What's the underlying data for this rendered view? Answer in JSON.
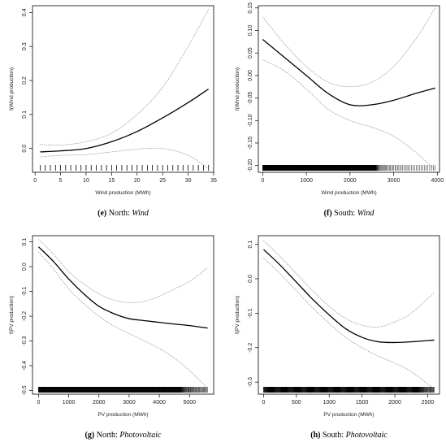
{
  "chart_data": [
    {
      "type": "line",
      "caption_label": "(e)",
      "caption_text": " North: ",
      "caption_italic": "Wind",
      "xlabel": "Wind production (MWh)",
      "ylabel": "f(Wind production)",
      "xlim": [
        -0.5,
        35
      ],
      "ylim": [
        -0.07,
        0.42
      ],
      "xticks": [
        0,
        5,
        10,
        15,
        20,
        25,
        30,
        35
      ],
      "yticks": [
        0.0,
        0.1,
        0.2,
        0.3,
        0.4
      ],
      "ytick_labels": [
        "0.0",
        "0.1",
        "0.2",
        "0.3",
        "0.4"
      ],
      "series": [
        {
          "role": "estimate",
          "x": [
            1,
            5,
            10,
            15,
            20,
            25,
            30,
            34
          ],
          "y": [
            -0.01,
            -0.007,
            0.0,
            0.02,
            0.05,
            0.09,
            0.135,
            0.175
          ]
        },
        {
          "role": "upper",
          "x": [
            1,
            5,
            10,
            15,
            20,
            25,
            30,
            34
          ],
          "y": [
            0.012,
            0.01,
            0.02,
            0.045,
            0.1,
            0.18,
            0.3,
            0.41
          ]
        },
        {
          "role": "lower",
          "x": [
            1,
            5,
            10,
            15,
            20,
            25,
            30,
            34
          ],
          "y": [
            -0.025,
            -0.02,
            -0.018,
            -0.01,
            -0.002,
            0.0,
            -0.02,
            -0.06
          ]
        }
      ],
      "rug": {
        "min": 1,
        "max": 34,
        "count": 34,
        "step": 1
      }
    },
    {
      "type": "line",
      "caption_label": "(f)",
      "caption_text": " South: ",
      "caption_italic": "Wind",
      "xlabel": "Wind production (MWh)",
      "ylabel": "f(Wind production)",
      "xlim": [
        -100,
        4050
      ],
      "ylim": [
        -0.215,
        0.155
      ],
      "xticks": [
        0,
        1000,
        2000,
        3000,
        4000
      ],
      "yticks": [
        -0.2,
        -0.15,
        -0.1,
        -0.05,
        0.0,
        0.05,
        0.1,
        0.15
      ],
      "ytick_labels": [
        "-0.20",
        "-0.15",
        "-0.10",
        "-0.05",
        "0.00",
        "0.05",
        "0.10",
        "0.15"
      ],
      "series": [
        {
          "role": "estimate",
          "x": [
            0,
            500,
            1000,
            1500,
            2000,
            2500,
            3000,
            3500,
            3950
          ],
          "y": [
            0.08,
            0.04,
            0.0,
            -0.04,
            -0.065,
            -0.065,
            -0.055,
            -0.04,
            -0.028
          ]
        },
        {
          "role": "upper",
          "x": [
            0,
            500,
            1000,
            1500,
            2000,
            2500,
            3000,
            3500,
            3950
          ],
          "y": [
            0.13,
            0.07,
            0.02,
            -0.015,
            -0.025,
            -0.015,
            0.02,
            0.08,
            0.15
          ]
        },
        {
          "role": "lower",
          "x": [
            0,
            500,
            1000,
            1500,
            2000,
            2500,
            3000,
            3500,
            3950
          ],
          "y": [
            0.035,
            0.01,
            -0.03,
            -0.075,
            -0.1,
            -0.115,
            -0.135,
            -0.17,
            -0.21
          ]
        }
      ],
      "rug": {
        "min": 0,
        "max": 3950,
        "count": 420,
        "dense_until": 2600
      }
    },
    {
      "type": "line",
      "caption_label": "(g)",
      "caption_text": " North: ",
      "caption_italic": "Photovoltaic",
      "xlabel": "PV production (MWh)",
      "ylabel": "f(PV production)",
      "xlim": [
        -200,
        5800
      ],
      "ylim": [
        -0.515,
        0.125
      ],
      "xticks": [
        0,
        1000,
        2000,
        3000,
        4000,
        5000
      ],
      "yticks": [
        -0.5,
        -0.4,
        -0.3,
        -0.2,
        -0.1,
        0.0,
        0.1
      ],
      "ytick_labels": [
        "-0.5",
        "-0.4",
        "-0.3",
        "-0.2",
        "-0.1",
        "0.0",
        "0.1"
      ],
      "series": [
        {
          "role": "estimate",
          "x": [
            0,
            500,
            1000,
            1500,
            2000,
            2500,
            3000,
            3500,
            4000,
            4500,
            5000,
            5600
          ],
          "y": [
            0.08,
            0.02,
            -0.05,
            -0.11,
            -0.16,
            -0.19,
            -0.21,
            -0.218,
            -0.225,
            -0.232,
            -0.238,
            -0.248
          ]
        },
        {
          "role": "upper",
          "x": [
            0,
            500,
            1000,
            1500,
            2000,
            2500,
            3000,
            3500,
            4000,
            4500,
            5000,
            5600
          ],
          "y": [
            0.11,
            0.05,
            -0.02,
            -0.07,
            -0.11,
            -0.135,
            -0.145,
            -0.14,
            -0.12,
            -0.09,
            -0.06,
            -0.005
          ]
        },
        {
          "role": "lower",
          "x": [
            0,
            500,
            1000,
            1500,
            2000,
            2500,
            3000,
            3500,
            4000,
            4500,
            5000,
            5600
          ],
          "y": [
            0.06,
            -0.01,
            -0.09,
            -0.15,
            -0.2,
            -0.24,
            -0.27,
            -0.3,
            -0.33,
            -0.37,
            -0.42,
            -0.49
          ]
        }
      ],
      "rug": {
        "min": 0,
        "max": 5600,
        "count": 470,
        "dense_until": 4700
      }
    },
    {
      "type": "line",
      "caption_label": "(h)",
      "caption_text": " South: ",
      "caption_italic": "Photovoltaic",
      "xlabel": "PV production (MWh)",
      "ylabel": "f(PV production)",
      "xlim": [
        -80,
        2680
      ],
      "ylim": [
        -0.335,
        0.125
      ],
      "xticks": [
        0,
        500,
        1000,
        1500,
        2000,
        2500
      ],
      "yticks": [
        -0.3,
        -0.2,
        -0.1,
        0.0,
        0.1
      ],
      "ytick_labels": [
        "-0.3",
        "-0.2",
        "-0.1",
        "0.0",
        "0.1"
      ],
      "series": [
        {
          "role": "estimate",
          "x": [
            0,
            250,
            500,
            750,
            1000,
            1250,
            1500,
            1750,
            2000,
            2250,
            2600
          ],
          "y": [
            0.085,
            0.04,
            -0.01,
            -0.06,
            -0.105,
            -0.145,
            -0.17,
            -0.183,
            -0.185,
            -0.183,
            -0.178
          ]
        },
        {
          "role": "upper",
          "x": [
            0,
            250,
            500,
            750,
            1000,
            1250,
            1500,
            1750,
            2000,
            2250,
            2600
          ],
          "y": [
            0.11,
            0.065,
            0.015,
            -0.035,
            -0.08,
            -0.115,
            -0.135,
            -0.14,
            -0.125,
            -0.1,
            -0.04
          ]
        },
        {
          "role": "lower",
          "x": [
            0,
            250,
            500,
            750,
            1000,
            1250,
            1500,
            1750,
            2000,
            2250,
            2600
          ],
          "y": [
            0.06,
            0.015,
            -0.035,
            -0.085,
            -0.13,
            -0.17,
            -0.2,
            -0.225,
            -0.245,
            -0.27,
            -0.32
          ]
        }
      ],
      "rug": {
        "min": 0,
        "max": 2600,
        "count": 420,
        "dense_until": 2350
      }
    }
  ]
}
